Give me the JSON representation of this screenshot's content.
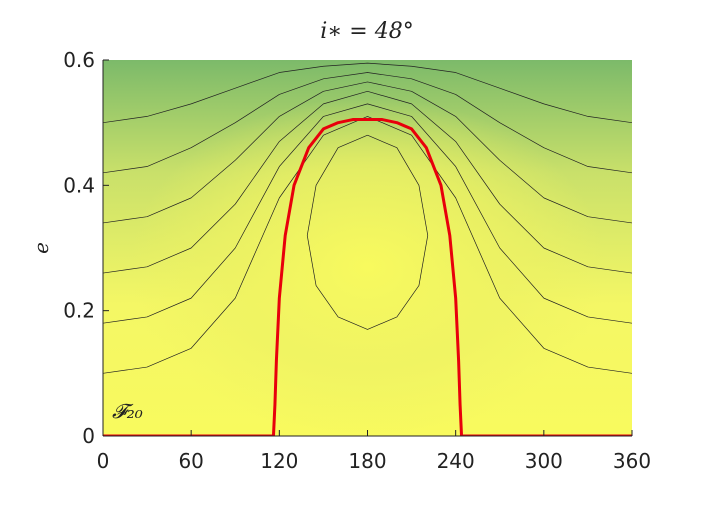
{
  "chart_data": {
    "type": "line",
    "title": "i∗ = 48°",
    "ylabel": "e",
    "annotation": "𝓕₂₀",
    "xlim": [
      0,
      360
    ],
    "ylim": [
      0,
      0.6
    ],
    "xticks": [
      0,
      60,
      120,
      180,
      240,
      300,
      360
    ],
    "yticks": [
      0,
      0.2,
      0.4,
      0.6
    ],
    "series": [
      {
        "color": "#222222",
        "line_width": 0.7,
        "x": [
          0,
          30,
          60,
          90,
          120,
          150,
          180,
          210,
          240,
          270,
          300,
          330,
          360
        ],
        "values": [
          0.1,
          0.11,
          0.14,
          0.22,
          0.38,
          0.48,
          0.51,
          0.48,
          0.38,
          0.22,
          0.14,
          0.11,
          0.1
        ]
      },
      {
        "color": "#222222",
        "line_width": 0.7,
        "x": [
          0,
          30,
          60,
          90,
          120,
          150,
          180,
          210,
          240,
          270,
          300,
          330,
          360
        ],
        "values": [
          0.18,
          0.19,
          0.22,
          0.3,
          0.43,
          0.51,
          0.53,
          0.51,
          0.43,
          0.3,
          0.22,
          0.19,
          0.18
        ]
      },
      {
        "color": "#222222",
        "line_width": 0.7,
        "x": [
          0,
          30,
          60,
          90,
          120,
          150,
          180,
          210,
          240,
          270,
          300,
          330,
          360
        ],
        "values": [
          0.26,
          0.27,
          0.3,
          0.37,
          0.47,
          0.53,
          0.55,
          0.53,
          0.47,
          0.37,
          0.3,
          0.27,
          0.26
        ]
      },
      {
        "color": "#222222",
        "line_width": 0.7,
        "x": [
          0,
          30,
          60,
          90,
          120,
          150,
          180,
          210,
          240,
          270,
          300,
          330,
          360
        ],
        "values": [
          0.34,
          0.35,
          0.38,
          0.44,
          0.51,
          0.55,
          0.565,
          0.55,
          0.51,
          0.44,
          0.38,
          0.35,
          0.34
        ]
      },
      {
        "color": "#222222",
        "line_width": 0.7,
        "x": [
          0,
          30,
          60,
          90,
          120,
          150,
          180,
          210,
          240,
          270,
          300,
          330,
          360
        ],
        "values": [
          0.42,
          0.43,
          0.46,
          0.5,
          0.545,
          0.57,
          0.58,
          0.57,
          0.545,
          0.5,
          0.46,
          0.43,
          0.42
        ]
      },
      {
        "color": "#222222",
        "line_width": 0.7,
        "x": [
          0,
          30,
          60,
          90,
          120,
          150,
          180,
          210,
          240,
          270,
          300,
          330,
          360
        ],
        "values": [
          0.5,
          0.51,
          0.53,
          0.555,
          0.58,
          0.59,
          0.595,
          0.59,
          0.58,
          0.555,
          0.53,
          0.51,
          0.5
        ]
      },
      {
        "color": "#222222",
        "line_width": 0.7,
        "x": [
          180,
          200,
          215,
          221,
          215,
          200,
          180,
          160,
          145,
          139,
          145,
          160,
          180
        ],
        "values": [
          0.48,
          0.46,
          0.4,
          0.32,
          0.24,
          0.19,
          0.17,
          0.19,
          0.24,
          0.32,
          0.4,
          0.46,
          0.48
        ]
      },
      {
        "color": "#e8000b",
        "line_width": 3,
        "x": [
          0,
          116,
          117,
          118,
          120,
          124,
          130,
          140,
          150,
          160,
          170,
          180,
          190,
          200,
          210,
          220,
          230,
          236,
          240,
          242,
          243,
          244,
          360
        ],
        "values": [
          0,
          0,
          0.05,
          0.12,
          0.22,
          0.32,
          0.4,
          0.46,
          0.49,
          0.5,
          0.505,
          0.505,
          0.505,
          0.5,
          0.49,
          0.46,
          0.4,
          0.32,
          0.22,
          0.12,
          0.05,
          0,
          0
        ]
      }
    ]
  }
}
